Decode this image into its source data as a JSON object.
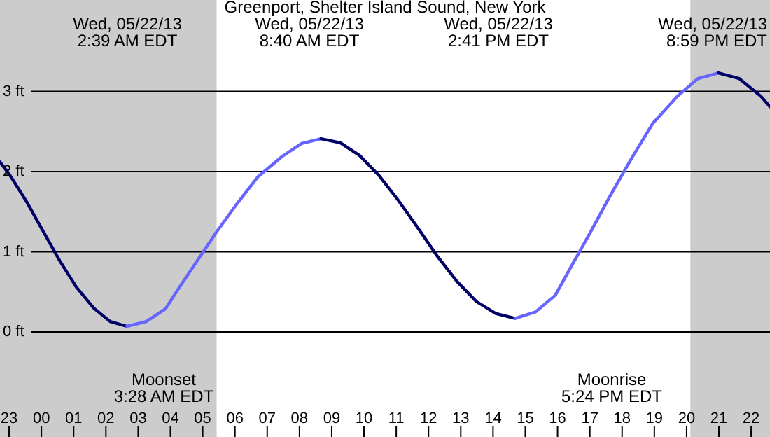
{
  "chart_data": {
    "type": "line",
    "title": "Greenport, Shelter Island Sound, New York",
    "xlim": [
      "--05-21T22:43",
      "--05-22T22:35"
    ],
    "ylim": [
      -1.31,
      4.14
    ],
    "xticks": [
      {
        "value": "--05-21T23:00",
        "label": "23"
      },
      {
        "value": "--05-22T00:00",
        "label": "00"
      },
      {
        "value": "--05-22T01:00",
        "label": "01"
      },
      {
        "value": "--05-22T02:00",
        "label": "02"
      },
      {
        "value": "--05-22T03:00",
        "label": "03"
      },
      {
        "value": "--05-22T04:00",
        "label": "04"
      },
      {
        "value": "--05-22T05:00",
        "label": "05"
      },
      {
        "value": "--05-22T06:00",
        "label": "06"
      },
      {
        "value": "--05-22T07:00",
        "label": "07"
      },
      {
        "value": "--05-22T08:00",
        "label": "08"
      },
      {
        "value": "--05-22T09:00",
        "label": "09"
      },
      {
        "value": "--05-22T10:00",
        "label": "10"
      },
      {
        "value": "--05-22T11:00",
        "label": "11"
      },
      {
        "value": "--05-22T12:00",
        "label": "12"
      },
      {
        "value": "--05-22T13:00",
        "label": "13"
      },
      {
        "value": "--05-22T14:00",
        "label": "14"
      },
      {
        "value": "--05-22T15:00",
        "label": "15"
      },
      {
        "value": "--05-22T16:00",
        "label": "16"
      },
      {
        "value": "--05-22T17:00",
        "label": "17"
      },
      {
        "value": "--05-22T18:00",
        "label": "18"
      },
      {
        "value": "--05-22T19:00",
        "label": "19"
      },
      {
        "value": "--05-22T20:00",
        "label": "20"
      },
      {
        "value": "--05-22T21:00",
        "label": "21"
      },
      {
        "value": "--05-22T22:00",
        "label": "22"
      }
    ],
    "yticks": [
      {
        "value": 0,
        "label": "0 ft"
      },
      {
        "value": 1,
        "label": "1 ft"
      },
      {
        "value": 2,
        "label": "2 ft"
      },
      {
        "value": 3,
        "label": "3 ft"
      }
    ],
    "grid": "y",
    "series": [
      {
        "color": "#000066",
        "x": [
          "--05-21T22:43",
          "--05-21T23:01",
          "--05-21T23:32",
          "--05-22T00:03",
          "--05-22T00:34",
          "--05-22T01:05",
          "--05-22T01:37",
          "--05-22T02:08",
          "--05-22T02:39"
        ],
        "values": [
          2.12,
          1.96,
          1.63,
          1.26,
          0.89,
          0.56,
          0.3,
          0.13,
          0.07
        ]
      },
      {
        "color": "#6666ff",
        "x": [
          "--05-22T02:39",
          "--05-22T03:15",
          "--05-22T03:51",
          "--05-22T04:16",
          "--05-22T04:49",
          "--05-22T05:25",
          "--05-22T06:04",
          "--05-22T06:42",
          "--05-22T07:28",
          "--05-22T08:04",
          "--05-22T08:40"
        ],
        "values": [
          0.07,
          0.13,
          0.29,
          0.55,
          0.88,
          1.24,
          1.6,
          1.93,
          2.19,
          2.35,
          2.41
        ]
      },
      {
        "color": "#000066",
        "x": [
          "--05-22T08:40",
          "--05-22T09:16",
          "--05-22T09:52",
          "--05-22T10:28",
          "--05-22T11:04",
          "--05-22T11:41",
          "--05-22T12:17",
          "--05-22T12:53",
          "--05-22T13:29",
          "--05-22T14:05",
          "--05-22T14:41"
        ],
        "values": [
          2.41,
          2.36,
          2.2,
          1.95,
          1.64,
          1.29,
          0.94,
          0.63,
          0.38,
          0.23,
          0.17
        ]
      },
      {
        "color": "#6666ff",
        "x": [
          "--05-22T14:41",
          "--05-22T15:19",
          "--05-22T15:56",
          "--05-22T16:24",
          "--05-22T17:00",
          "--05-22T17:38",
          "--05-22T18:18",
          "--05-22T18:57",
          "--05-22T19:43",
          "--05-22T20:21",
          "--05-22T20:59"
        ],
        "values": [
          0.17,
          0.25,
          0.46,
          0.8,
          1.23,
          1.7,
          2.17,
          2.6,
          2.94,
          3.16,
          3.23
        ]
      },
      {
        "color": "#000066",
        "x": [
          "--05-22T20:59",
          "--05-22T21:38",
          "--05-22T22:18",
          "--05-22T22:35"
        ],
        "values": [
          3.23,
          3.16,
          2.94,
          2.81
        ]
      }
    ],
    "bands": [
      {
        "axis": "x",
        "from": "--05-21T22:43",
        "to": "--05-22T05:26",
        "color": "#cccccc"
      },
      {
        "axis": "x",
        "from": "--05-22T20:07",
        "to": "--05-22T22:35",
        "color": "#cccccc"
      }
    ],
    "annotations": [
      "Wed, 05/22/13\n2:39 AM EDT",
      "Wed, 05/22/13\n8:40 AM EDT",
      "Wed, 05/22/13\n2:41 PM EDT",
      "Wed, 05/22/13\n8:59 PM EDT",
      "Moonset\n3:28 AM EDT",
      "Moonrise\n5:24 PM EDT"
    ]
  }
}
